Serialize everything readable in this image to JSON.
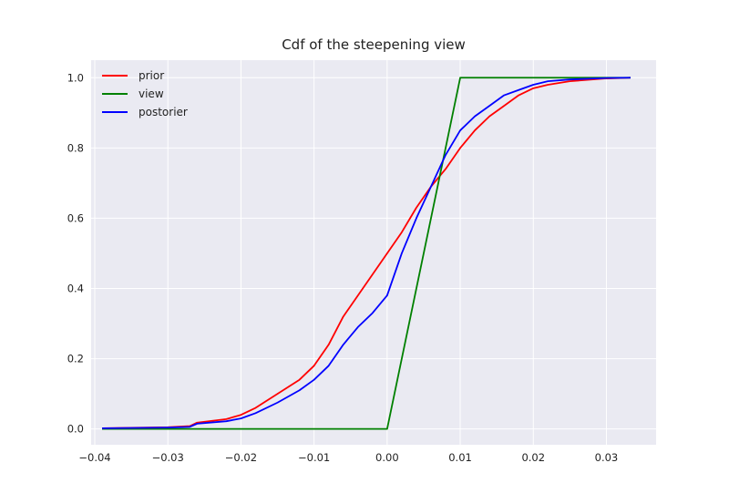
{
  "chart_data": {
    "type": "line",
    "title": "Cdf of the steepening view",
    "xlabel": "",
    "ylabel": "",
    "xlim": [
      -0.0405,
      0.0368
    ],
    "ylim": [
      -0.045,
      1.05
    ],
    "grid": true,
    "legend_position": "top-left",
    "xticks": [
      -0.04,
      -0.03,
      -0.02,
      -0.01,
      0.0,
      0.01,
      0.02,
      0.03
    ],
    "xtick_labels": [
      "−0.04",
      "−0.03",
      "−0.02",
      "−0.01",
      "0.00",
      "0.01",
      "0.02",
      "0.03"
    ],
    "yticks": [
      0.0,
      0.2,
      0.4,
      0.6,
      0.8,
      1.0
    ],
    "ytick_labels": [
      "0.0",
      "0.2",
      "0.4",
      "0.6",
      "0.8",
      "1.0"
    ],
    "series": [
      {
        "name": "prior",
        "color": "#ff0000",
        "x": [
          -0.039,
          -0.03,
          -0.027,
          -0.026,
          -0.022,
          -0.02,
          -0.018,
          -0.015,
          -0.012,
          -0.01,
          -0.008,
          -0.006,
          -0.004,
          -0.002,
          0.0,
          0.002,
          0.004,
          0.006,
          0.008,
          0.01,
          0.012,
          0.014,
          0.016,
          0.018,
          0.02,
          0.022,
          0.025,
          0.03,
          0.0333
        ],
        "values": [
          0.002,
          0.005,
          0.008,
          0.018,
          0.028,
          0.04,
          0.06,
          0.1,
          0.14,
          0.18,
          0.24,
          0.32,
          0.38,
          0.44,
          0.5,
          0.56,
          0.63,
          0.69,
          0.74,
          0.8,
          0.85,
          0.89,
          0.92,
          0.95,
          0.97,
          0.98,
          0.99,
          0.998,
          1.0
        ]
      },
      {
        "name": "view",
        "color": "#008000",
        "x": [
          -0.039,
          0.0,
          0.01,
          0.0333
        ],
        "values": [
          0.0,
          0.0,
          1.0,
          1.0
        ]
      },
      {
        "name": "postorier",
        "color": "#0000ff",
        "x": [
          -0.039,
          -0.03,
          -0.027,
          -0.026,
          -0.022,
          -0.02,
          -0.018,
          -0.015,
          -0.012,
          -0.01,
          -0.008,
          -0.006,
          -0.004,
          -0.002,
          0.0,
          0.002,
          0.004,
          0.006,
          0.008,
          0.01,
          0.012,
          0.014,
          0.016,
          0.018,
          0.02,
          0.022,
          0.025,
          0.03,
          0.0333
        ],
        "values": [
          0.002,
          0.004,
          0.006,
          0.015,
          0.022,
          0.03,
          0.045,
          0.075,
          0.11,
          0.14,
          0.18,
          0.24,
          0.29,
          0.33,
          0.38,
          0.5,
          0.6,
          0.69,
          0.78,
          0.85,
          0.89,
          0.92,
          0.95,
          0.965,
          0.98,
          0.99,
          0.995,
          0.999,
          1.0
        ]
      }
    ]
  }
}
